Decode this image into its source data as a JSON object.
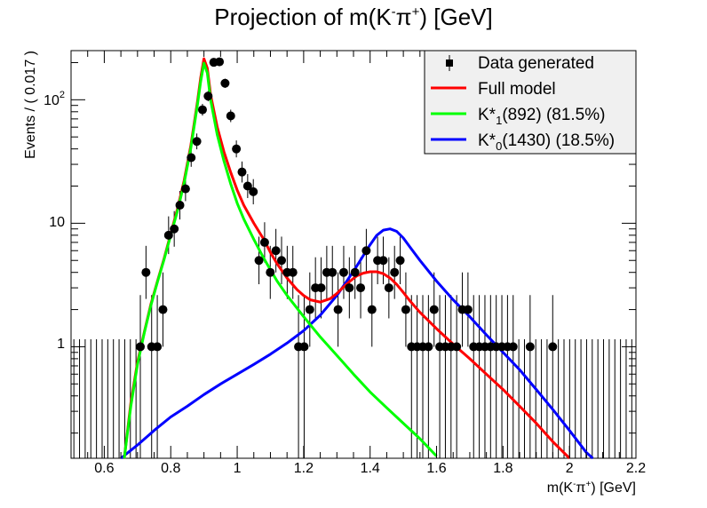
{
  "chart_data": {
    "type": "scatter",
    "title_parts": {
      "a": "Projection of m(K",
      "b": "-",
      "c": "π",
      "d": "+",
      "e": ") [GeV]"
    },
    "xlabel_parts": {
      "a": "m(K",
      "b": "-",
      "c": "π",
      "d": "+",
      "e": ") [GeV]"
    },
    "ylabel": "Events / ( 0.017 )",
    "xlim": [
      0.5,
      2.2
    ],
    "ylim": [
      0.125,
      250
    ],
    "yscale": "log",
    "x_ticks": [
      "0.6",
      "0.8",
      "1",
      "1.2",
      "1.4",
      "1.6",
      "1.8",
      "2",
      "2.2"
    ],
    "y_ticks": {
      "t1": "1",
      "t10": "10",
      "t100_base": "10",
      "t100_exp": "2"
    },
    "legend": {
      "data": "Data generated",
      "full": "Full model",
      "k892": {
        "a": "K*",
        "sub": "1",
        "b": "(892) (81.5%)"
      },
      "k1430": {
        "a": "K*",
        "sub": "0",
        "b": "(1430) (18.5%)"
      }
    },
    "colors": {
      "full": "#ff0000",
      "k892": "#00ff00",
      "k1430": "#0000ff"
    },
    "points": [
      [
        0.7085,
        1
      ],
      [
        0.7255,
        4
      ],
      [
        0.7425,
        1
      ],
      [
        0.7595,
        1
      ],
      [
        0.7765,
        2
      ],
      [
        0.7935,
        8
      ],
      [
        0.8105,
        9
      ],
      [
        0.8275,
        14
      ],
      [
        0.8445,
        19
      ],
      [
        0.8615,
        34
      ],
      [
        0.8785,
        46
      ],
      [
        0.8955,
        83
      ],
      [
        0.9125,
        107
      ],
      [
        0.9295,
        201
      ],
      [
        0.9465,
        203
      ],
      [
        0.9635,
        136
      ],
      [
        0.9805,
        74
      ],
      [
        0.9975,
        40
      ],
      [
        1.0145,
        26
      ],
      [
        1.0315,
        20
      ],
      [
        1.0485,
        18
      ],
      [
        1.0655,
        5
      ],
      [
        1.0825,
        7
      ],
      [
        1.0995,
        4
      ],
      [
        1.1165,
        6
      ],
      [
        1.1335,
        5
      ],
      [
        1.1505,
        4
      ],
      [
        1.1675,
        4
      ],
      [
        1.1845,
        1
      ],
      [
        1.2015,
        1
      ],
      [
        1.2185,
        2
      ],
      [
        1.2355,
        3
      ],
      [
        1.2525,
        3
      ],
      [
        1.2695,
        4
      ],
      [
        1.2865,
        4
      ],
      [
        1.3035,
        2
      ],
      [
        1.3205,
        4
      ],
      [
        1.3375,
        3
      ],
      [
        1.3545,
        4
      ],
      [
        1.3715,
        3
      ],
      [
        1.3885,
        6
      ],
      [
        1.4055,
        2
      ],
      [
        1.4225,
        5
      ],
      [
        1.4395,
        5
      ],
      [
        1.4565,
        3
      ],
      [
        1.4735,
        4
      ],
      [
        1.4905,
        5
      ],
      [
        1.5075,
        2
      ],
      [
        1.5245,
        1
      ],
      [
        1.5415,
        1
      ],
      [
        1.5585,
        1
      ],
      [
        1.5755,
        1
      ],
      [
        1.5925,
        2
      ],
      [
        1.6095,
        1
      ],
      [
        1.6265,
        1
      ],
      [
        1.6435,
        1
      ],
      [
        1.6605,
        1
      ],
      [
        1.6775,
        2
      ],
      [
        1.6945,
        2
      ],
      [
        1.7115,
        1
      ],
      [
        1.7285,
        1
      ],
      [
        1.7455,
        1
      ],
      [
        1.7625,
        1
      ],
      [
        1.7795,
        1
      ],
      [
        1.7965,
        1
      ],
      [
        1.8135,
        1
      ],
      [
        1.8305,
        1
      ],
      [
        1.8815,
        1
      ],
      [
        1.9495,
        1
      ]
    ],
    "empty_bins_x": [
      0.5085,
      0.5255,
      0.5425,
      0.5595,
      0.5765,
      0.5935,
      0.6105,
      0.6275,
      0.6445,
      0.6615,
      0.6785,
      0.6955,
      1.8475,
      1.8645,
      1.8985,
      1.9155,
      1.9325,
      1.9665,
      1.9835,
      2.0005,
      2.0175,
      2.0345,
      2.0515,
      2.0685,
      2.0855,
      2.1025,
      2.1195,
      2.1365,
      2.1535,
      2.1705,
      2.1875
    ],
    "curve_full": [
      [
        0.66,
        0.1
      ],
      [
        0.68,
        0.35
      ],
      [
        0.7,
        0.75
      ],
      [
        0.72,
        1.3
      ],
      [
        0.74,
        2.2
      ],
      [
        0.76,
        3.4
      ],
      [
        0.78,
        5.2
      ],
      [
        0.8,
        8.2
      ],
      [
        0.82,
        13
      ],
      [
        0.84,
        22
      ],
      [
        0.86,
        42
      ],
      [
        0.88,
        95
      ],
      [
        0.89,
        150
      ],
      [
        0.9,
        215
      ],
      [
        0.91,
        180
      ],
      [
        0.92,
        110
      ],
      [
        0.94,
        60
      ],
      [
        0.96,
        38
      ],
      [
        0.98,
        26
      ],
      [
        1.0,
        18.5
      ],
      [
        1.02,
        14
      ],
      [
        1.05,
        10
      ],
      [
        1.08,
        7.4
      ],
      [
        1.1,
        5.8
      ],
      [
        1.12,
        4.7
      ],
      [
        1.15,
        3.6
      ],
      [
        1.18,
        2.9
      ],
      [
        1.2,
        2.6
      ],
      [
        1.22,
        2.4
      ],
      [
        1.25,
        2.3
      ],
      [
        1.28,
        2.45
      ],
      [
        1.3,
        2.7
      ],
      [
        1.32,
        3.05
      ],
      [
        1.34,
        3.4
      ],
      [
        1.36,
        3.75
      ],
      [
        1.38,
        3.95
      ],
      [
        1.4,
        4.05
      ],
      [
        1.42,
        4.05
      ],
      [
        1.44,
        3.9
      ],
      [
        1.46,
        3.6
      ],
      [
        1.48,
        3.2
      ],
      [
        1.5,
        2.75
      ],
      [
        1.52,
        2.35
      ],
      [
        1.55,
        1.9
      ],
      [
        1.6,
        1.4
      ],
      [
        1.65,
        1.05
      ],
      [
        1.7,
        0.8
      ],
      [
        1.75,
        0.6
      ],
      [
        1.8,
        0.45
      ],
      [
        1.85,
        0.33
      ],
      [
        1.9,
        0.24
      ],
      [
        1.95,
        0.17
      ],
      [
        2.0,
        0.12
      ]
    ],
    "curve_k892": [
      [
        0.66,
        0.09
      ],
      [
        0.68,
        0.33
      ],
      [
        0.7,
        0.72
      ],
      [
        0.72,
        1.28
      ],
      [
        0.74,
        2.15
      ],
      [
        0.76,
        3.35
      ],
      [
        0.78,
        5.1
      ],
      [
        0.8,
        8.0
      ],
      [
        0.82,
        12.5
      ],
      [
        0.84,
        21
      ],
      [
        0.86,
        40
      ],
      [
        0.88,
        90
      ],
      [
        0.89,
        140
      ],
      [
        0.9,
        198
      ],
      [
        0.91,
        165
      ],
      [
        0.92,
        100
      ],
      [
        0.94,
        52
      ],
      [
        0.96,
        32
      ],
      [
        0.98,
        21
      ],
      [
        1.0,
        14.5
      ],
      [
        1.02,
        10.8
      ],
      [
        1.05,
        7.4
      ],
      [
        1.08,
        5.2
      ],
      [
        1.1,
        4.2
      ],
      [
        1.12,
        3.4
      ],
      [
        1.15,
        2.6
      ],
      [
        1.2,
        1.75
      ],
      [
        1.25,
        1.2
      ],
      [
        1.3,
        0.85
      ],
      [
        1.35,
        0.6
      ],
      [
        1.4,
        0.43
      ],
      [
        1.45,
        0.32
      ],
      [
        1.5,
        0.24
      ],
      [
        1.55,
        0.18
      ],
      [
        1.6,
        0.13
      ]
    ],
    "curve_k1430": [
      [
        0.65,
        0.11
      ],
      [
        0.7,
        0.16
      ],
      [
        0.75,
        0.21
      ],
      [
        0.8,
        0.27
      ],
      [
        0.85,
        0.33
      ],
      [
        0.9,
        0.41
      ],
      [
        0.95,
        0.5
      ],
      [
        1.0,
        0.6
      ],
      [
        1.05,
        0.72
      ],
      [
        1.1,
        0.87
      ],
      [
        1.15,
        1.07
      ],
      [
        1.2,
        1.35
      ],
      [
        1.25,
        1.8
      ],
      [
        1.3,
        2.6
      ],
      [
        1.33,
        3.4
      ],
      [
        1.36,
        4.5
      ],
      [
        1.38,
        5.5
      ],
      [
        1.4,
        6.7
      ],
      [
        1.42,
        8.0
      ],
      [
        1.44,
        8.8
      ],
      [
        1.46,
        9.0
      ],
      [
        1.48,
        8.6
      ],
      [
        1.5,
        7.6
      ],
      [
        1.52,
        6.4
      ],
      [
        1.55,
        5.0
      ],
      [
        1.6,
        3.4
      ],
      [
        1.65,
        2.4
      ],
      [
        1.7,
        1.75
      ],
      [
        1.75,
        1.25
      ],
      [
        1.8,
        0.9
      ],
      [
        1.85,
        0.65
      ],
      [
        1.9,
        0.45
      ],
      [
        1.95,
        0.31
      ],
      [
        2.0,
        0.21
      ],
      [
        2.05,
        0.14
      ],
      [
        2.07,
        0.12
      ]
    ]
  }
}
